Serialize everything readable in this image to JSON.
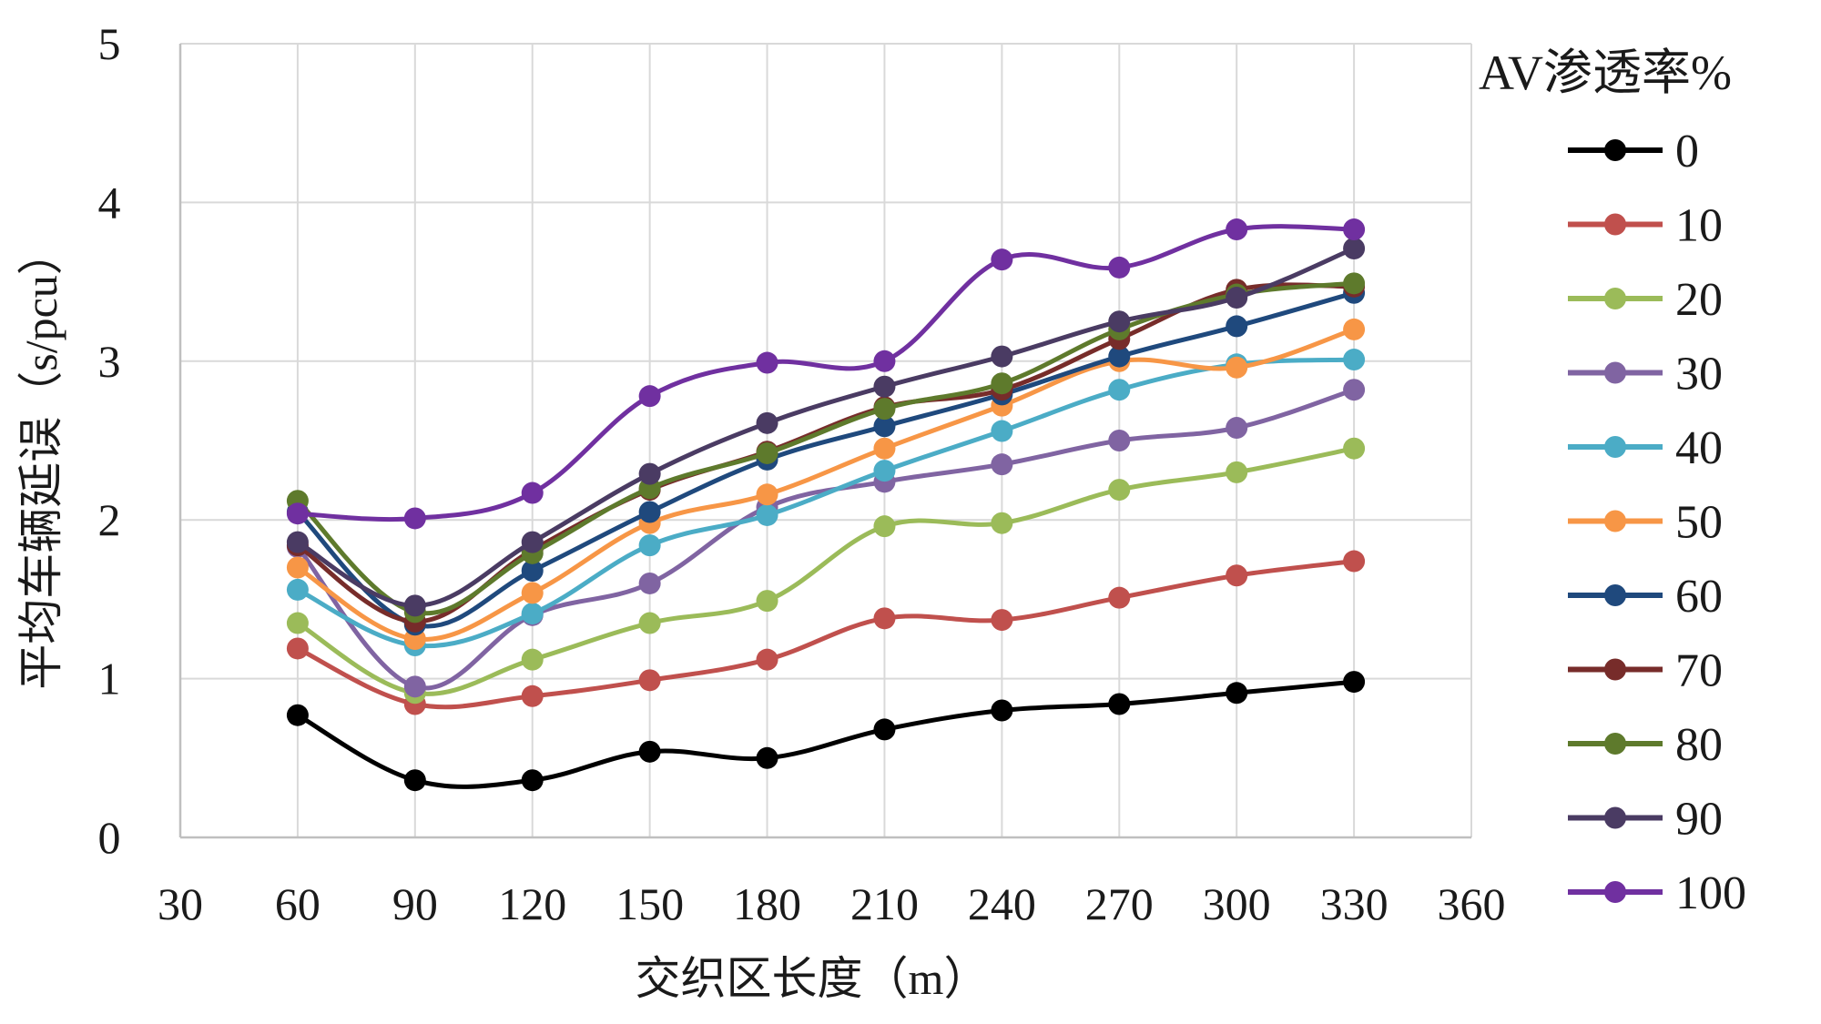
{
  "chart_data": {
    "type": "line",
    "title": "",
    "xlabel": "交织区长度（m）",
    "ylabel": "平均车辆延误（s/pcu）",
    "xlim": [
      30,
      360
    ],
    "ylim": [
      0,
      5
    ],
    "xticks": [
      30,
      60,
      90,
      120,
      150,
      180,
      210,
      240,
      270,
      300,
      330,
      360
    ],
    "yticks": [
      0,
      1,
      2,
      3,
      4,
      5
    ],
    "grid": true,
    "smooth": true,
    "legend_title": "AV渗透率%",
    "legend_position": "right",
    "x": [
      60,
      90,
      120,
      150,
      180,
      210,
      240,
      270,
      300,
      330
    ],
    "series": [
      {
        "name": "0",
        "color": "#000000",
        "values": [
          0.77,
          0.36,
          0.36,
          0.54,
          0.5,
          0.68,
          0.8,
          0.84,
          0.91,
          0.98
        ]
      },
      {
        "name": "10",
        "color": "#c0504d",
        "values": [
          1.19,
          0.84,
          0.89,
          0.99,
          1.12,
          1.38,
          1.37,
          1.51,
          1.65,
          1.74
        ]
      },
      {
        "name": "20",
        "color": "#9bbb59",
        "values": [
          1.35,
          0.91,
          1.12,
          1.35,
          1.49,
          1.96,
          1.98,
          2.19,
          2.3,
          2.45
        ]
      },
      {
        "name": "30",
        "color": "#8064a2",
        "values": [
          1.83,
          0.95,
          1.4,
          1.6,
          2.08,
          2.24,
          2.35,
          2.5,
          2.58,
          2.82
        ]
      },
      {
        "name": "40",
        "color": "#4bacc6",
        "values": [
          1.56,
          1.21,
          1.41,
          1.84,
          2.03,
          2.31,
          2.56,
          2.82,
          2.98,
          3.01
        ]
      },
      {
        "name": "50",
        "color": "#f79646",
        "values": [
          1.7,
          1.25,
          1.54,
          1.98,
          2.16,
          2.45,
          2.72,
          3.0,
          2.96,
          3.2
        ]
      },
      {
        "name": "60",
        "color": "#1f497d",
        "values": [
          2.05,
          1.34,
          1.68,
          2.05,
          2.38,
          2.59,
          2.79,
          3.03,
          3.22,
          3.43
        ]
      },
      {
        "name": "70",
        "color": "#772c2a",
        "values": [
          1.84,
          1.36,
          1.81,
          2.19,
          2.43,
          2.71,
          2.82,
          3.14,
          3.45,
          3.47
        ]
      },
      {
        "name": "80",
        "color": "#5e7a2c",
        "values": [
          2.12,
          1.42,
          1.79,
          2.2,
          2.42,
          2.7,
          2.86,
          3.2,
          3.42,
          3.49
        ]
      },
      {
        "name": "90",
        "color": "#4a3b63",
        "values": [
          1.86,
          1.46,
          1.86,
          2.29,
          2.61,
          2.84,
          3.03,
          3.25,
          3.4,
          3.71
        ]
      },
      {
        "name": "100",
        "color": "#7030a0",
        "values": [
          2.04,
          2.01,
          2.17,
          2.78,
          2.99,
          3.0,
          3.64,
          3.59,
          3.83,
          3.83
        ]
      }
    ]
  }
}
